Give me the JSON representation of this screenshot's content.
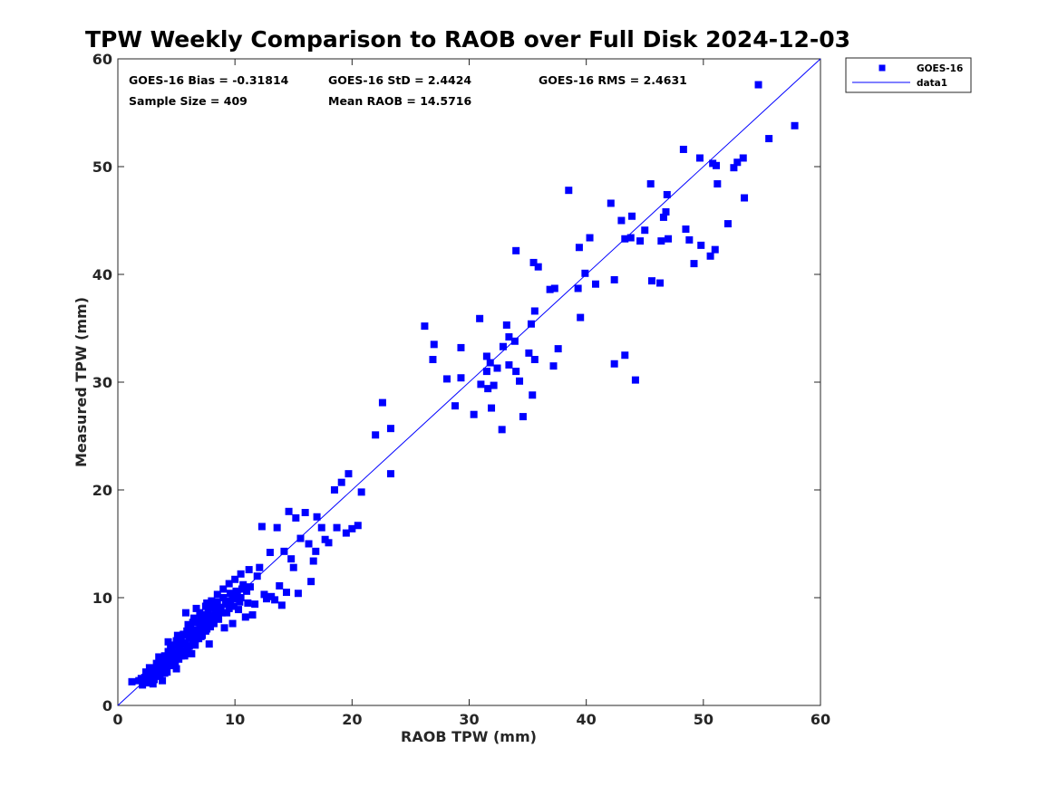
{
  "chart_data": {
    "type": "scatter",
    "title": "TPW Weekly Comparison to RAOB over Full Disk 2024-12-03",
    "xlabel": "RAOB TPW (mm)",
    "ylabel": "Measured TPW (mm)",
    "xlim": [
      0,
      60
    ],
    "ylim": [
      0,
      60
    ],
    "xticks": [
      "0",
      "10",
      "20",
      "30",
      "40",
      "50",
      "60"
    ],
    "yticks": [
      "0",
      "10",
      "20",
      "30",
      "40",
      "50",
      "60"
    ],
    "grid": false,
    "legend_position": "outside-top-right",
    "stats": {
      "bias": "GOES-16 Bias = -0.31814",
      "std": "GOES-16 StD = 2.4424",
      "rms": "GOES-16 RMS = 2.4631",
      "sample": "Sample Size = 409",
      "mean": "Mean RAOB = 14.5716"
    },
    "series": [
      {
        "name": "GOES-16",
        "type": "scatter",
        "marker": "square",
        "color": "#0000ff",
        "points": [
          [
            1.2,
            2.2
          ],
          [
            1.8,
            2.3
          ],
          [
            2.1,
            1.9
          ],
          [
            2.3,
            2.6
          ],
          [
            2.5,
            2.1
          ],
          [
            2.6,
            2.8
          ],
          [
            2.8,
            2.2
          ],
          [
            2.9,
            3.0
          ],
          [
            3.0,
            2.5
          ],
          [
            3.1,
            3.4
          ],
          [
            3.2,
            2.8
          ],
          [
            3.3,
            3.9
          ],
          [
            3.4,
            2.9
          ],
          [
            3.5,
            3.3
          ],
          [
            3.6,
            4.2
          ],
          [
            3.7,
            3.6
          ],
          [
            3.8,
            2.3
          ],
          [
            3.9,
            3.9
          ],
          [
            4.0,
            4.6
          ],
          [
            4.1,
            3.4
          ],
          [
            4.2,
            4.1
          ],
          [
            4.3,
            5.0
          ],
          [
            4.4,
            3.8
          ],
          [
            4.5,
            4.5
          ],
          [
            4.6,
            5.3
          ],
          [
            4.7,
            4.2
          ],
          [
            4.8,
            4.9
          ],
          [
            4.9,
            5.6
          ],
          [
            5.0,
            3.4
          ],
          [
            5.0,
            4.7
          ],
          [
            5.1,
            5.9
          ],
          [
            5.2,
            4.3
          ],
          [
            5.3,
            5.3
          ],
          [
            5.4,
            6.2
          ],
          [
            5.5,
            5.0
          ],
          [
            5.6,
            6.6
          ],
          [
            5.7,
            4.6
          ],
          [
            5.8,
            5.7
          ],
          [
            5.9,
            6.9
          ],
          [
            6.0,
            5.4
          ],
          [
            6.1,
            6.3
          ],
          [
            6.2,
            7.3
          ],
          [
            6.3,
            4.8
          ],
          [
            6.4,
            6.0
          ],
          [
            6.5,
            7.0
          ],
          [
            6.6,
            5.6
          ],
          [
            6.7,
            6.7
          ],
          [
            6.8,
            7.7
          ],
          [
            6.9,
            6.2
          ],
          [
            7.0,
            7.1
          ],
          [
            7.1,
            8.0
          ],
          [
            7.2,
            6.5
          ],
          [
            7.3,
            7.5
          ],
          [
            7.4,
            8.4
          ],
          [
            7.5,
            6.9
          ],
          [
            7.6,
            7.9
          ],
          [
            7.7,
            8.8
          ],
          [
            7.8,
            5.7
          ],
          [
            7.9,
            7.3
          ],
          [
            8.0,
            8.3
          ],
          [
            8.1,
            9.2
          ],
          [
            8.2,
            7.6
          ],
          [
            8.3,
            8.7
          ],
          [
            8.5,
            9.6
          ],
          [
            8.6,
            8.0
          ],
          [
            8.8,
            9.1
          ],
          [
            9.0,
            10.0
          ],
          [
            9.1,
            7.2
          ],
          [
            9.3,
            8.6
          ],
          [
            9.4,
            9.6
          ],
          [
            9.6,
            10.4
          ],
          [
            9.8,
            7.6
          ],
          [
            9.9,
            9.2
          ],
          [
            10.1,
            10.6
          ],
          [
            10.3,
            8.9
          ],
          [
            10.5,
            10.0
          ],
          [
            10.7,
            11.2
          ],
          [
            10.9,
            8.2
          ],
          [
            11.1,
            9.5
          ],
          [
            11.3,
            11.0
          ],
          [
            11.5,
            8.4
          ],
          [
            11.7,
            9.4
          ],
          [
            11.9,
            12.0
          ],
          [
            12.1,
            12.8
          ],
          [
            12.3,
            16.6
          ],
          [
            12.5,
            10.3
          ],
          [
            12.7,
            9.9
          ],
          [
            13.0,
            14.2
          ],
          [
            13.1,
            10.1
          ],
          [
            13.4,
            9.8
          ],
          [
            13.6,
            16.5
          ],
          [
            13.8,
            11.1
          ],
          [
            14.0,
            9.3
          ],
          [
            14.2,
            14.3
          ],
          [
            14.4,
            10.5
          ],
          [
            14.6,
            18.0
          ],
          [
            14.8,
            13.6
          ],
          [
            15.0,
            12.8
          ],
          [
            15.2,
            17.4
          ],
          [
            15.4,
            10.4
          ],
          [
            15.6,
            15.5
          ],
          [
            16.0,
            17.9
          ],
          [
            16.3,
            15.0
          ],
          [
            16.5,
            11.5
          ],
          [
            16.7,
            13.4
          ],
          [
            16.9,
            14.3
          ],
          [
            17.0,
            17.5
          ],
          [
            17.4,
            16.5
          ],
          [
            17.7,
            15.4
          ],
          [
            18.0,
            15.1
          ],
          [
            18.5,
            20.0
          ],
          [
            18.7,
            16.5
          ],
          [
            19.1,
            20.7
          ],
          [
            19.5,
            16.0
          ],
          [
            19.7,
            21.5
          ],
          [
            20.0,
            16.4
          ],
          [
            20.5,
            16.7
          ],
          [
            20.8,
            19.8
          ],
          [
            22.0,
            25.1
          ],
          [
            22.6,
            28.1
          ],
          [
            23.3,
            25.7
          ],
          [
            23.3,
            21.5
          ],
          [
            26.2,
            35.2
          ],
          [
            26.9,
            32.1
          ],
          [
            27.0,
            33.5
          ],
          [
            28.1,
            30.3
          ],
          [
            28.8,
            27.8
          ],
          [
            29.3,
            33.2
          ],
          [
            29.3,
            30.4
          ],
          [
            30.4,
            27.0
          ],
          [
            30.9,
            35.9
          ],
          [
            31.0,
            29.8
          ],
          [
            31.5,
            32.4
          ],
          [
            31.5,
            31.0
          ],
          [
            31.6,
            29.4
          ],
          [
            31.8,
            31.8
          ],
          [
            31.9,
            27.6
          ],
          [
            32.1,
            29.7
          ],
          [
            32.4,
            31.3
          ],
          [
            32.8,
            25.6
          ],
          [
            32.9,
            33.3
          ],
          [
            33.2,
            35.3
          ],
          [
            33.4,
            34.2
          ],
          [
            33.4,
            31.6
          ],
          [
            33.9,
            33.8
          ],
          [
            34.0,
            42.2
          ],
          [
            34.0,
            31.0
          ],
          [
            34.3,
            30.1
          ],
          [
            34.6,
            26.8
          ],
          [
            35.1,
            32.7
          ],
          [
            35.3,
            35.4
          ],
          [
            35.4,
            28.8
          ],
          [
            35.5,
            41.1
          ],
          [
            35.6,
            36.6
          ],
          [
            35.6,
            32.1
          ],
          [
            35.9,
            40.7
          ],
          [
            36.9,
            38.6
          ],
          [
            37.2,
            31.5
          ],
          [
            37.3,
            38.7
          ],
          [
            37.6,
            33.1
          ],
          [
            38.5,
            47.8
          ],
          [
            39.3,
            38.7
          ],
          [
            39.4,
            42.5
          ],
          [
            39.5,
            36.0
          ],
          [
            39.9,
            40.1
          ],
          [
            40.3,
            43.4
          ],
          [
            40.8,
            39.1
          ],
          [
            42.1,
            46.6
          ],
          [
            42.4,
            31.7
          ],
          [
            42.4,
            39.5
          ],
          [
            43.0,
            45.0
          ],
          [
            43.3,
            32.5
          ],
          [
            43.3,
            43.3
          ],
          [
            43.8,
            43.4
          ],
          [
            43.9,
            45.4
          ],
          [
            44.2,
            30.2
          ],
          [
            44.6,
            43.1
          ],
          [
            45.0,
            44.1
          ],
          [
            45.5,
            48.4
          ],
          [
            45.6,
            39.4
          ],
          [
            46.3,
            39.2
          ],
          [
            46.4,
            43.1
          ],
          [
            46.6,
            45.3
          ],
          [
            46.8,
            45.8
          ],
          [
            46.9,
            47.4
          ],
          [
            47.0,
            43.3
          ],
          [
            48.3,
            51.6
          ],
          [
            48.5,
            44.2
          ],
          [
            48.8,
            43.2
          ],
          [
            49.2,
            41.0
          ],
          [
            49.7,
            50.8
          ],
          [
            49.8,
            42.7
          ],
          [
            50.6,
            41.7
          ],
          [
            50.8,
            50.3
          ],
          [
            51.0,
            42.3
          ],
          [
            51.1,
            50.1
          ],
          [
            51.2,
            48.4
          ],
          [
            52.1,
            44.7
          ],
          [
            52.6,
            49.9
          ],
          [
            52.9,
            50.4
          ],
          [
            53.4,
            50.8
          ],
          [
            53.5,
            47.1
          ],
          [
            54.7,
            57.6
          ],
          [
            55.6,
            52.6
          ],
          [
            57.8,
            53.8
          ],
          [
            3.1,
            2.4
          ],
          [
            3.3,
            3.1
          ],
          [
            3.6,
            2.7
          ],
          [
            3.9,
            3.5
          ],
          [
            4.2,
            3.1
          ],
          [
            4.4,
            4.4
          ],
          [
            4.7,
            3.7
          ],
          [
            4.9,
            4.0
          ],
          [
            5.2,
            5.0
          ],
          [
            5.4,
            4.6
          ],
          [
            5.6,
            5.8
          ],
          [
            5.9,
            5.2
          ],
          [
            6.1,
            5.5
          ],
          [
            6.3,
            6.6
          ],
          [
            6.6,
            6.1
          ],
          [
            6.8,
            6.8
          ],
          [
            7.1,
            6.4
          ],
          [
            7.3,
            7.2
          ],
          [
            7.6,
            7.1
          ],
          [
            7.8,
            7.6
          ],
          [
            8.1,
            8.0
          ],
          [
            8.4,
            8.2
          ],
          [
            8.6,
            8.9
          ],
          [
            8.9,
            8.6
          ],
          [
            9.2,
            9.4
          ],
          [
            9.5,
            9.0
          ],
          [
            9.8,
            9.9
          ],
          [
            10.2,
            10.2
          ],
          [
            10.6,
            10.8
          ],
          [
            11.0,
            10.6
          ],
          [
            2.0,
            2.5
          ],
          [
            2.4,
            3.1
          ],
          [
            2.7,
            3.5
          ],
          [
            3.0,
            2.0
          ],
          [
            3.5,
            4.5
          ],
          [
            4.0,
            3.0
          ],
          [
            4.5,
            5.5
          ],
          [
            5.0,
            6.0
          ],
          [
            5.5,
            6.5
          ],
          [
            6.0,
            7.5
          ],
          [
            6.5,
            8.1
          ],
          [
            7.0,
            8.6
          ],
          [
            7.5,
            9.2
          ],
          [
            8.0,
            9.7
          ],
          [
            8.5,
            10.3
          ],
          [
            9.0,
            10.8
          ],
          [
            9.5,
            11.3
          ],
          [
            10.0,
            11.7
          ],
          [
            10.5,
            12.2
          ],
          [
            11.2,
            12.6
          ],
          [
            5.8,
            8.6
          ],
          [
            6.7,
            9.0
          ],
          [
            7.6,
            9.5
          ],
          [
            4.3,
            5.9
          ],
          [
            5.1,
            6.5
          ],
          [
            6.4,
            7.7
          ],
          [
            7.2,
            8.4
          ],
          [
            8.3,
            9.1
          ],
          [
            9.6,
            9.7
          ],
          [
            10.4,
            9.6
          ]
        ]
      },
      {
        "name": "data1",
        "type": "line",
        "color": "#0000ff",
        "points": [
          [
            0,
            0
          ],
          [
            60,
            60
          ]
        ]
      }
    ]
  }
}
